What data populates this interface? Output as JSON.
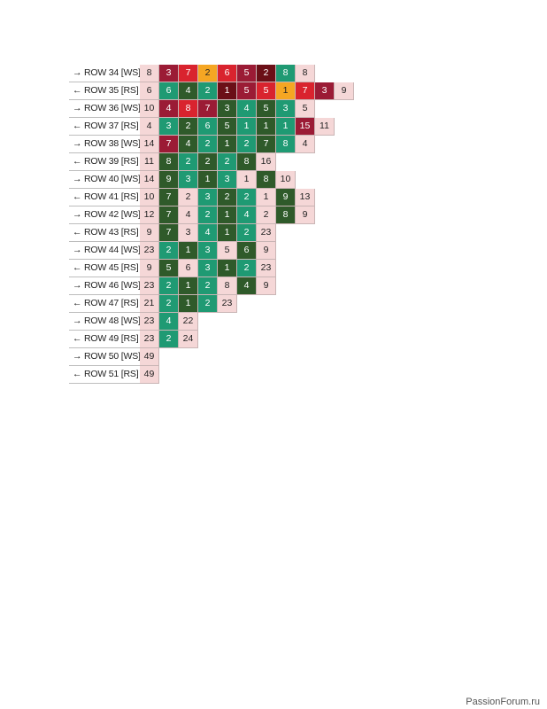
{
  "colors": {
    "P": "#f5d7d7",
    "R": "#d9232e",
    "M": "#9b1b35",
    "D": "#6b0f17",
    "O": "#f5a623",
    "G": "#1f9a73",
    "K": "#2f5a2a"
  },
  "rows": [
    {
      "label": "→ ROW 34 [WS]",
      "cells": [
        [
          8,
          "P"
        ],
        [
          3,
          "M"
        ],
        [
          7,
          "R"
        ],
        [
          2,
          "O"
        ],
        [
          6,
          "R"
        ],
        [
          5,
          "M"
        ],
        [
          2,
          "D"
        ],
        [
          8,
          "G"
        ],
        [
          8,
          "P"
        ]
      ]
    },
    {
      "label": "← ROW 35 [RS]",
      "cells": [
        [
          6,
          "P"
        ],
        [
          6,
          "G"
        ],
        [
          4,
          "K"
        ],
        [
          2,
          "G"
        ],
        [
          1,
          "D"
        ],
        [
          5,
          "M"
        ],
        [
          5,
          "R"
        ],
        [
          1,
          "O"
        ],
        [
          7,
          "R"
        ],
        [
          3,
          "M"
        ],
        [
          9,
          "P"
        ]
      ]
    },
    {
      "label": "→ ROW 36 [WS]",
      "cells": [
        [
          10,
          "P"
        ],
        [
          4,
          "M"
        ],
        [
          8,
          "R"
        ],
        [
          7,
          "M"
        ],
        [
          3,
          "K"
        ],
        [
          4,
          "G"
        ],
        [
          5,
          "K"
        ],
        [
          3,
          "G"
        ],
        [
          5,
          "P"
        ]
      ]
    },
    {
      "label": "← ROW 37 [RS]",
      "cells": [
        [
          4,
          "P"
        ],
        [
          3,
          "G"
        ],
        [
          2,
          "K"
        ],
        [
          6,
          "G"
        ],
        [
          5,
          "K"
        ],
        [
          1,
          "G"
        ],
        [
          1,
          "K"
        ],
        [
          1,
          "G"
        ],
        [
          15,
          "M"
        ],
        [
          11,
          "P"
        ]
      ]
    },
    {
      "label": "→ ROW 38 [WS]",
      "cells": [
        [
          14,
          "P"
        ],
        [
          7,
          "M"
        ],
        [
          4,
          "K"
        ],
        [
          2,
          "G"
        ],
        [
          1,
          "K"
        ],
        [
          2,
          "G"
        ],
        [
          7,
          "K"
        ],
        [
          8,
          "G"
        ],
        [
          4,
          "P"
        ]
      ]
    },
    {
      "label": "← ROW 39 [RS]",
      "cells": [
        [
          11,
          "P"
        ],
        [
          8,
          "K"
        ],
        [
          2,
          "G"
        ],
        [
          2,
          "K"
        ],
        [
          2,
          "G"
        ],
        [
          8,
          "K"
        ],
        [
          16,
          "P"
        ]
      ]
    },
    {
      "label": "→ ROW 40 [WS]",
      "cells": [
        [
          14,
          "P"
        ],
        [
          9,
          "K"
        ],
        [
          3,
          "G"
        ],
        [
          1,
          "K"
        ],
        [
          3,
          "G"
        ],
        [
          1,
          "P"
        ],
        [
          8,
          "K"
        ],
        [
          10,
          "P"
        ]
      ]
    },
    {
      "label": "← ROW 41 [RS]",
      "cells": [
        [
          10,
          "P"
        ],
        [
          7,
          "K"
        ],
        [
          2,
          "P"
        ],
        [
          3,
          "G"
        ],
        [
          2,
          "K"
        ],
        [
          2,
          "G"
        ],
        [
          1,
          "P"
        ],
        [
          9,
          "K"
        ],
        [
          13,
          "P"
        ]
      ]
    },
    {
      "label": "→ ROW 42 [WS]",
      "cells": [
        [
          12,
          "P"
        ],
        [
          7,
          "K"
        ],
        [
          4,
          "P"
        ],
        [
          2,
          "G"
        ],
        [
          1,
          "K"
        ],
        [
          4,
          "G"
        ],
        [
          2,
          "P"
        ],
        [
          8,
          "K"
        ],
        [
          9,
          "P"
        ]
      ]
    },
    {
      "label": "← ROW 43 [RS]",
      "cells": [
        [
          9,
          "P"
        ],
        [
          7,
          "K"
        ],
        [
          3,
          "P"
        ],
        [
          4,
          "G"
        ],
        [
          1,
          "K"
        ],
        [
          2,
          "G"
        ],
        [
          23,
          "P"
        ]
      ]
    },
    {
      "label": "→ ROW 44 [WS]",
      "cells": [
        [
          23,
          "P"
        ],
        [
          2,
          "G"
        ],
        [
          1,
          "K"
        ],
        [
          3,
          "G"
        ],
        [
          5,
          "P"
        ],
        [
          6,
          "K"
        ],
        [
          9,
          "P"
        ]
      ]
    },
    {
      "label": "← ROW 45 [RS]",
      "cells": [
        [
          9,
          "P"
        ],
        [
          5,
          "K"
        ],
        [
          6,
          "P"
        ],
        [
          3,
          "G"
        ],
        [
          1,
          "K"
        ],
        [
          2,
          "G"
        ],
        [
          23,
          "P"
        ]
      ]
    },
    {
      "label": "→ ROW 46 [WS]",
      "cells": [
        [
          23,
          "P"
        ],
        [
          2,
          "G"
        ],
        [
          1,
          "K"
        ],
        [
          2,
          "G"
        ],
        [
          8,
          "P"
        ],
        [
          4,
          "K"
        ],
        [
          9,
          "P"
        ]
      ]
    },
    {
      "label": "← ROW 47 [RS]",
      "cells": [
        [
          21,
          "P"
        ],
        [
          2,
          "G"
        ],
        [
          1,
          "K"
        ],
        [
          2,
          "G"
        ],
        [
          23,
          "P"
        ]
      ]
    },
    {
      "label": "→ ROW 48 [WS]",
      "cells": [
        [
          23,
          "P"
        ],
        [
          4,
          "G"
        ],
        [
          22,
          "P"
        ]
      ]
    },
    {
      "label": "← ROW 49 [RS]",
      "cells": [
        [
          23,
          "P"
        ],
        [
          2,
          "G"
        ],
        [
          24,
          "P"
        ]
      ]
    },
    {
      "label": "→ ROW 50 [WS]",
      "cells": [
        [
          49,
          "P"
        ]
      ]
    },
    {
      "label": "← ROW 51 [RS]",
      "cells": [
        [
          49,
          "P"
        ]
      ]
    }
  ],
  "watermark": "PassionForum.ru"
}
